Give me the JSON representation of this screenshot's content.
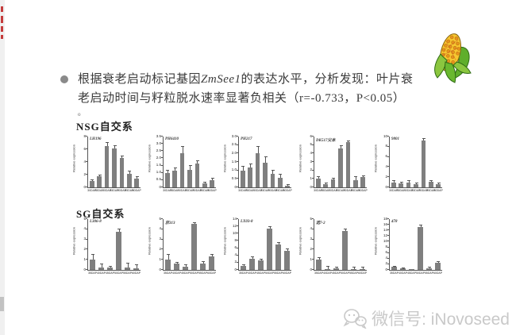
{
  "slide": {
    "bullet": {
      "text_before_italic": "根据衰老启动标记基因",
      "italic_gene": "ZmSee1",
      "text_after_italic": "的表达水平，分析发现：叶片衰",
      "line2": "老启动时间与籽粒脱水速率显著负相关（r=-0.733，P<0.05）"
    },
    "row_labels": [
      "NSG自交系",
      "SG自交系"
    ],
    "stray_mark": "o",
    "watermark": {
      "text": "微信号: iNovoseed"
    },
    "colors": {
      "bar": "#7f7f7f",
      "axis": "#555555",
      "text": "#3b3b3b",
      "bullet_dot": "#8a8a8a",
      "watermark": "#c9c9c9",
      "corn_yellow": "#f6c62f",
      "corn_green": "#6ab82f",
      "edge_red": "#c43b3b"
    }
  },
  "chart_data": [
    {
      "type": "bar",
      "group": "NSG自交系",
      "title": "LH196",
      "ylabel": "Relative expression",
      "ylim": [
        0,
        8
      ],
      "yticks": [
        "0",
        "2",
        "4",
        "6",
        "8"
      ],
      "x": [
        "30DAP",
        "35DAP",
        "40DAP",
        "45DAP",
        "50DAP",
        "55DAP",
        "60DAP"
      ],
      "values": [
        1.0,
        1.7,
        6.5,
        6.1,
        4.6,
        2.1,
        1.4
      ],
      "errors": [
        0.15,
        0.15,
        0.45,
        0.35,
        0.3,
        0.35,
        0.2
      ]
    },
    {
      "type": "bar",
      "group": "NSG自交系",
      "title": "PH6410",
      "ylabel": "Relative expression",
      "ylim": [
        0,
        3.5
      ],
      "yticks": [
        "0",
        "0.5",
        "1.0",
        "1.5",
        "2.0",
        "2.5",
        "3.0",
        "3.5"
      ],
      "x": [
        "30DAP",
        "35DAP",
        "40DAP",
        "45DAP",
        "50DAP",
        "55DAP",
        "60DAP"
      ],
      "values": [
        1.0,
        1.15,
        2.35,
        1.2,
        1.65,
        0.25,
        0.5
      ],
      "errors": [
        0.15,
        0.15,
        0.45,
        0.3,
        0.15,
        0.08,
        0.12
      ]
    },
    {
      "type": "bar",
      "group": "NSG自交系",
      "title": "PH217",
      "ylabel": "Relative expression",
      "ylim": [
        0,
        3.0
      ],
      "yticks": [
        "0",
        "0.5",
        "1.0",
        "1.5",
        "2.0",
        "2.5",
        "3.0"
      ],
      "x": [
        "30DAP",
        "35DAP",
        "40DAP",
        "45DAP",
        "50DAP",
        "55DAP",
        "60DAP"
      ],
      "values": [
        1.0,
        1.15,
        2.0,
        1.45,
        0.8,
        0.55,
        0.1
      ],
      "errors": [
        0.2,
        0.2,
        0.4,
        0.35,
        0.2,
        0.2,
        0.05
      ]
    },
    {
      "type": "bar",
      "group": "NSG自交系",
      "title": "DK517父本",
      "ylabel": "Relative expression",
      "ylim": [
        0,
        6
      ],
      "yticks": [
        "0",
        "1",
        "2",
        "3",
        "4",
        "5",
        "6"
      ],
      "x": [
        "30DAP",
        "35DAP",
        "40DAP",
        "45DAP",
        "50DAP",
        "55DAP",
        "60DAP"
      ],
      "values": [
        1.0,
        0.4,
        0.9,
        4.6,
        5.3,
        0.8,
        1.2
      ],
      "errors": [
        0.2,
        0.1,
        0.15,
        0.25,
        0.15,
        0.4,
        0.15
      ]
    },
    {
      "type": "bar",
      "group": "NSG自交系",
      "title": "9801",
      "ylabel": "Relative expression",
      "ylim": [
        0,
        10
      ],
      "yticks": [
        "0",
        "2",
        "4",
        "6",
        "8",
        "10"
      ],
      "x": [
        "30DAP",
        "35DAP",
        "40DAP",
        "45DAP",
        "50DAP",
        "55DAP",
        "60DAP"
      ],
      "values": [
        1.0,
        0.8,
        1.0,
        0.6,
        9.2,
        1.1,
        0.7
      ],
      "errors": [
        0.2,
        0.15,
        0.25,
        0.15,
        0.3,
        0.2,
        0.1
      ]
    },
    {
      "type": "bar",
      "group": "SG自交系",
      "title": "L306-8",
      "ylabel": "Relative expression",
      "ylim": [
        0,
        5
      ],
      "yticks": [
        "0",
        "1",
        "2",
        "3",
        "4",
        "5"
      ],
      "x": [
        "35DAP",
        "40DAP",
        "45DAP",
        "50DAP",
        "55DAP",
        "60DAP"
      ],
      "values": [
        1.0,
        0.25,
        0.2,
        3.75,
        0.25,
        0.15
      ],
      "errors": [
        0.45,
        0.3,
        0.15,
        0.2,
        0.35,
        0.3
      ]
    },
    {
      "type": "bar",
      "group": "SG自交系",
      "title": "京313",
      "ylabel": "Relative expression",
      "ylim": [
        0,
        5
      ],
      "yticks": [
        "0",
        "1",
        "2",
        "3",
        "4",
        "5"
      ],
      "x": [
        "35DAP",
        "40DAP",
        "45DAP",
        "50DAP",
        "55DAP",
        "60DAP"
      ],
      "values": [
        1.0,
        0.6,
        0.3,
        4.5,
        0.6,
        1.3
      ],
      "errors": [
        0.45,
        0.1,
        0.15,
        0.1,
        0.15,
        0.2
      ]
    },
    {
      "type": "bar",
      "group": "SG自交系",
      "title": "LX03-8",
      "ylabel": "Relative expression",
      "ylim": [
        0,
        14
      ],
      "yticks": [
        "0",
        "2",
        "4",
        "6",
        "8",
        "10",
        "12",
        "14"
      ],
      "x": [
        "35DAP",
        "40DAP",
        "45DAP",
        "50DAP",
        "55DAP",
        "60DAP"
      ],
      "values": [
        1.0,
        3.0,
        2.6,
        11.3,
        6.9,
        5.3
      ],
      "errors": [
        0.3,
        0.4,
        0.3,
        0.5,
        0.6,
        0.4
      ]
    },
    {
      "type": "bar",
      "group": "SG自交系",
      "title": "选7-2",
      "ylabel": "Relative expression",
      "ylim": [
        0,
        5
      ],
      "yticks": [
        "0",
        "1",
        "2",
        "3",
        "4",
        "5"
      ],
      "x": [
        "35DAP",
        "40DAP",
        "45DAP",
        "50DAP",
        "55DAP",
        "60DAP"
      ],
      "values": [
        1.0,
        0.1,
        0.15,
        3.8,
        0.1,
        0.1
      ],
      "errors": [
        0.15,
        0.2,
        0.1,
        0.2,
        0.15,
        0.15
      ]
    },
    {
      "type": "bar",
      "group": "SG自交系",
      "title": "478",
      "ylabel": "Relative expression",
      "ylim": [
        0,
        18
      ],
      "yticks": [
        "0",
        "2",
        "4",
        "6",
        "8",
        "10",
        "12",
        "14",
        "16",
        "18"
      ],
      "x": [
        "35DAP",
        "40DAP",
        "45DAP",
        "50DAP",
        "55DAP",
        "60DAP"
      ],
      "values": [
        1.0,
        0.5,
        0.25,
        15.3,
        0.6,
        2.5
      ],
      "errors": [
        0.2,
        0.15,
        0.1,
        0.5,
        0.2,
        0.2
      ]
    }
  ]
}
